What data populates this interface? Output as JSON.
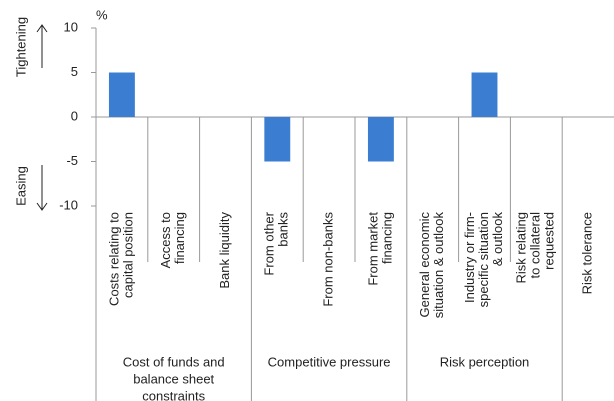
{
  "chart_data": {
    "type": "bar",
    "unit": "%",
    "y_axis_labels": {
      "top": "Tightening",
      "bottom": "Easing"
    },
    "categories": [
      [
        "Costs relating to",
        "capital position"
      ],
      [
        "Access to",
        "financing"
      ],
      [
        "Bank liquidity"
      ],
      [
        "From other",
        "banks"
      ],
      [
        "From non-banks"
      ],
      [
        "From market",
        "financing"
      ],
      [
        "General economic",
        "situation & outlook"
      ],
      [
        "Industry or firm-",
        "specific situation",
        "& outlook"
      ],
      [
        "Risk relating",
        "to collateral",
        "requested"
      ],
      [
        "Risk tolerance"
      ]
    ],
    "groups": [
      {
        "label": [
          "Cost of funds and",
          "balance sheet",
          "constraints"
        ],
        "span": [
          0,
          2
        ]
      },
      {
        "label": [
          "Competitive pressure"
        ],
        "span": [
          3,
          5
        ]
      },
      {
        "label": [
          "Risk perception"
        ],
        "span": [
          6,
          8
        ]
      }
    ],
    "values": [
      5,
      0,
      0,
      -5,
      0,
      -5,
      0,
      5,
      0,
      0
    ],
    "color": "#3b7dd0",
    "ylim": [
      -10,
      10
    ],
    "yticks": [
      -10,
      -5,
      0,
      5,
      10
    ]
  }
}
